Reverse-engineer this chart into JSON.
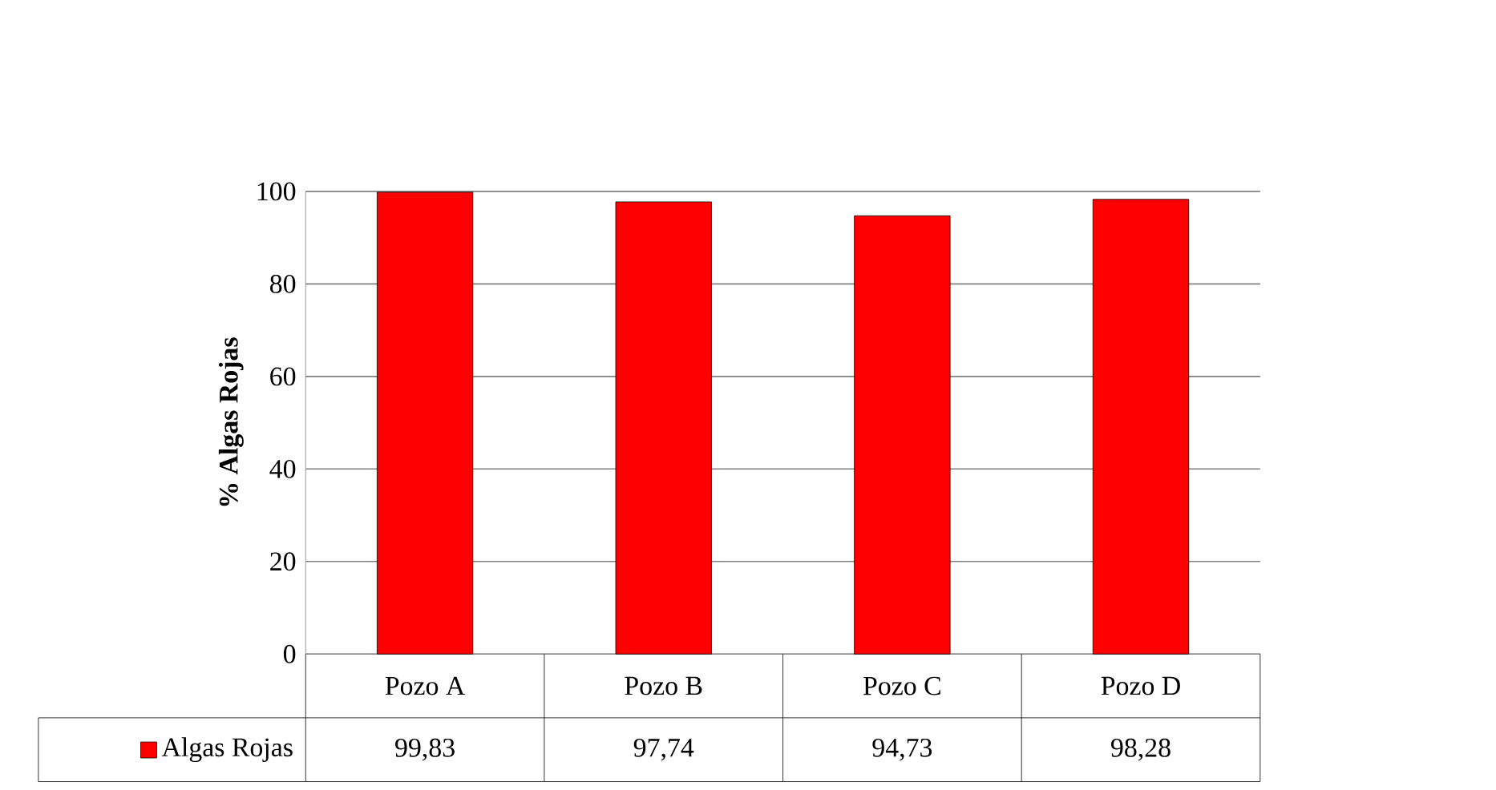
{
  "chart_data": {
    "type": "bar",
    "ylabel": "% Algas Rojas",
    "categories": [
      "Pozo A",
      "Pozo B",
      "Pozo C",
      "Pozo D"
    ],
    "series": [
      {
        "name": "Algas Rojas",
        "color": "#ff0000",
        "values": [
          99.83,
          97.74,
          94.73,
          98.28
        ],
        "value_labels": [
          "99,83",
          "97,74",
          "94,73",
          "98,28"
        ]
      }
    ],
    "ylim": [
      0,
      100
    ],
    "yticks": [
      0,
      20,
      40,
      60,
      80,
      100
    ],
    "grid": "y",
    "legend": "bottom"
  }
}
